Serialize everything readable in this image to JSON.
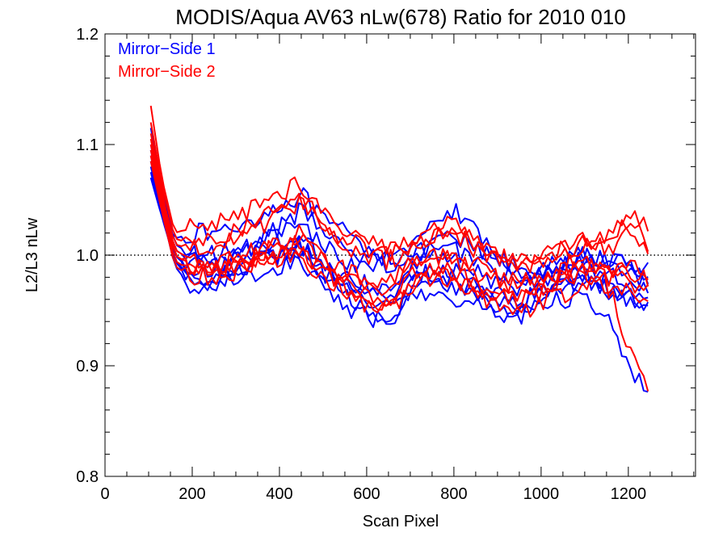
{
  "chart_data": {
    "type": "line",
    "title": "MODIS/Aqua AV63 nLw(678) Ratio for 2010 010",
    "xlabel": "Scan Pixel",
    "ylabel": "L2/L3 nLw",
    "xlim": [
      0,
      1354
    ],
    "ylim": [
      0.8,
      1.2
    ],
    "x_ticks": [
      0,
      200,
      400,
      600,
      800,
      1000,
      1200
    ],
    "y_ticks": [
      0.8,
      0.9,
      1.0,
      1.1,
      1.2
    ],
    "x_tick_labels": [
      "0",
      "200",
      "400",
      "600",
      "800",
      "1000",
      "1200"
    ],
    "y_tick_labels": [
      "0.8",
      "0.9",
      "1.0",
      "1.1",
      "1.2"
    ],
    "reference_line": {
      "y": 1.0,
      "style": "dotted"
    },
    "grid": false,
    "legend": {
      "placement": "top-left",
      "entries": [
        {
          "label": "Mirror−Side 1",
          "color": "#0000ff"
        },
        {
          "label": "Mirror−Side 2",
          "color": "#ff0000"
        }
      ]
    },
    "x": [
      105,
      130,
      160,
      200,
      250,
      300,
      350,
      400,
      450,
      500,
      550,
      600,
      650,
      700,
      750,
      800,
      850,
      900,
      950,
      1000,
      1050,
      1100,
      1150,
      1200,
      1250
    ],
    "series": [
      {
        "group": "Mirror-Side 1",
        "color": "#0000ff",
        "values": [
          1.08,
          1.04,
          1.015,
          1.02,
          1.02,
          1.025,
          1.035,
          1.045,
          1.055,
          1.03,
          1.02,
          1.005,
          1.0,
          0.995,
          1.01,
          1.015,
          1.005,
          0.995,
          0.99,
          0.985,
          0.995,
          1.0,
          0.995,
          0.99,
          0.98
        ]
      },
      {
        "group": "Mirror-Side 1",
        "color": "#0000ff",
        "values": [
          1.07,
          1.035,
          1.0,
          0.99,
          0.985,
          0.99,
          0.995,
          1.0,
          1.005,
          0.985,
          0.97,
          0.96,
          0.955,
          0.975,
          0.985,
          0.985,
          0.975,
          0.965,
          0.96,
          0.965,
          0.975,
          0.985,
          0.975,
          0.965,
          0.955
        ]
      },
      {
        "group": "Mirror-Side 1",
        "color": "#0000ff",
        "values": [
          1.1,
          1.05,
          1.0,
          0.985,
          0.99,
          0.995,
          1.005,
          1.01,
          1.015,
          0.995,
          0.98,
          0.975,
          0.97,
          0.99,
          1.0,
          0.995,
          0.985,
          0.975,
          0.97,
          0.975,
          0.985,
          0.99,
          0.985,
          0.975,
          0.97
        ]
      },
      {
        "group": "Mirror-Side 1",
        "color": "#0000ff",
        "values": [
          1.09,
          1.045,
          0.995,
          0.975,
          0.975,
          0.985,
          0.995,
          1.0,
          1.0,
          0.98,
          0.965,
          0.95,
          0.945,
          0.965,
          0.975,
          0.97,
          0.96,
          0.95,
          0.95,
          0.96,
          0.97,
          0.975,
          0.965,
          0.96,
          0.95
        ]
      },
      {
        "group": "Mirror-Side 1",
        "color": "#0000ff",
        "values": [
          1.115,
          1.06,
          1.01,
          1.0,
          1.0,
          1.005,
          1.01,
          1.02,
          1.025,
          1.01,
          0.995,
          0.99,
          0.99,
          1.0,
          1.005,
          1.005,
          0.995,
          0.985,
          0.98,
          0.985,
          0.99,
          1.0,
          0.99,
          0.985,
          0.975
        ]
      },
      {
        "group": "Mirror-Side 1",
        "color": "#0000ff",
        "values": [
          1.085,
          1.04,
          0.99,
          0.97,
          0.97,
          0.98,
          0.985,
          0.99,
          0.995,
          0.97,
          0.955,
          0.945,
          0.94,
          0.96,
          0.965,
          0.96,
          0.955,
          0.945,
          0.945,
          0.955,
          0.96,
          0.965,
          0.945,
          0.9,
          0.87
        ]
      },
      {
        "group": "Mirror-Side 1",
        "color": "#0000ff",
        "values": [
          1.095,
          1.05,
          1.005,
          0.995,
          0.995,
          1.0,
          1.01,
          1.025,
          1.04,
          1.02,
          1.005,
          1.0,
          0.995,
          1.01,
          1.03,
          1.04,
          1.02,
          1.0,
          0.985,
          0.98,
          0.99,
          1.0,
          0.995,
          0.99,
          0.985
        ]
      },
      {
        "group": "Mirror-Side 1",
        "color": "#0000ff",
        "values": [
          1.075,
          1.035,
          0.995,
          0.98,
          0.98,
          0.99,
          0.995,
          1.0,
          1.01,
          0.99,
          0.975,
          0.965,
          0.96,
          0.98,
          0.985,
          0.98,
          0.97,
          0.96,
          0.955,
          0.965,
          0.975,
          0.98,
          0.97,
          0.965,
          0.96
        ]
      },
      {
        "group": "Mirror-Side 2",
        "color": "#ff0000",
        "values": [
          1.135,
          1.07,
          1.02,
          1.025,
          1.03,
          1.035,
          1.045,
          1.055,
          1.065,
          1.04,
          1.025,
          1.015,
          1.005,
          1.01,
          1.02,
          1.025,
          1.01,
          1.0,
          0.995,
          1.0,
          1.005,
          1.01,
          1.015,
          1.04,
          1.02
        ]
      },
      {
        "group": "Mirror-Side 2",
        "color": "#ff0000",
        "values": [
          1.1,
          1.055,
          1.005,
          0.995,
          0.995,
          1.0,
          1.005,
          1.01,
          1.015,
          0.995,
          0.98,
          0.975,
          0.97,
          0.995,
          1.005,
          1.0,
          0.99,
          0.98,
          0.975,
          0.98,
          0.99,
          0.995,
          0.99,
          0.985,
          0.975
        ]
      },
      {
        "group": "Mirror-Side 2",
        "color": "#ff0000",
        "values": [
          1.11,
          1.06,
          1.0,
          0.99,
          0.99,
          0.995,
          1.0,
          1.005,
          1.01,
          0.985,
          0.97,
          0.96,
          0.955,
          0.98,
          0.99,
          0.985,
          0.975,
          0.965,
          0.96,
          0.97,
          0.98,
          0.985,
          0.975,
          0.92,
          0.88
        ]
      },
      {
        "group": "Mirror-Side 2",
        "color": "#ff0000",
        "values": [
          1.09,
          1.045,
          0.995,
          0.985,
          0.985,
          0.99,
          0.995,
          1.0,
          1.005,
          0.985,
          0.975,
          0.965,
          0.96,
          0.975,
          0.985,
          0.98,
          0.97,
          0.965,
          0.96,
          0.965,
          0.975,
          0.985,
          0.98,
          0.975,
          0.965
        ]
      },
      {
        "group": "Mirror-Side 2",
        "color": "#ff0000",
        "values": [
          1.105,
          1.055,
          1.01,
          1.005,
          1.01,
          1.015,
          1.025,
          1.035,
          1.045,
          1.025,
          1.01,
          1.0,
          0.995,
          1.005,
          1.015,
          1.02,
          1.005,
          0.995,
          0.99,
          0.995,
          1.0,
          1.01,
          1.005,
          1.02,
          1.0
        ]
      },
      {
        "group": "Mirror-Side 2",
        "color": "#ff0000",
        "values": [
          1.095,
          1.05,
          1.0,
          0.99,
          0.99,
          0.995,
          1.0,
          1.01,
          1.02,
          1.0,
          0.985,
          0.98,
          0.975,
          0.99,
          1.0,
          0.995,
          0.985,
          0.975,
          0.97,
          0.975,
          0.985,
          0.99,
          0.985,
          0.99,
          0.985
        ]
      },
      {
        "group": "Mirror-Side 2",
        "color": "#ff0000",
        "values": [
          1.12,
          1.065,
          1.015,
          1.01,
          1.015,
          1.02,
          1.03,
          1.04,
          1.05,
          1.03,
          1.015,
          1.005,
          1.0,
          1.01,
          1.025,
          1.03,
          1.015,
          1.005,
          0.995,
          1.0,
          1.005,
          1.015,
          1.01,
          1.03,
          1.01
        ]
      },
      {
        "group": "Mirror-Side 2",
        "color": "#ff0000",
        "values": [
          1.085,
          1.04,
          0.99,
          0.98,
          0.98,
          0.985,
          0.99,
          0.995,
          1.0,
          0.98,
          0.965,
          0.955,
          0.95,
          0.97,
          0.98,
          0.975,
          0.965,
          0.955,
          0.95,
          0.955,
          0.965,
          0.975,
          0.97,
          0.965,
          0.955
        ]
      }
    ]
  }
}
